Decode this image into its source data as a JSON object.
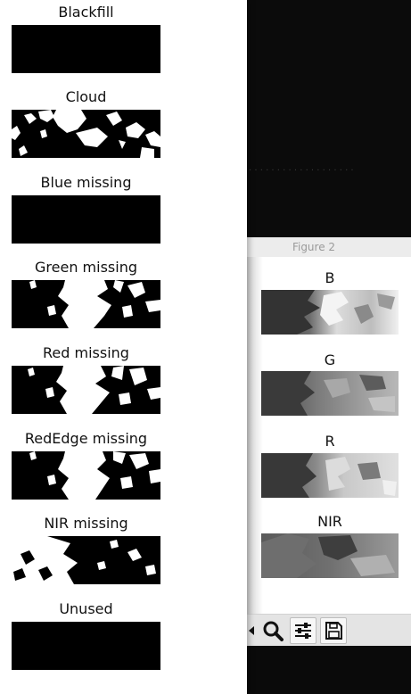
{
  "mask_panel": {
    "panels": [
      {
        "title": "Blackfill",
        "fill": "empty"
      },
      {
        "title": "Cloud",
        "fill": "cloud"
      },
      {
        "title": "Blue missing",
        "fill": "empty"
      },
      {
        "title": "Green missing",
        "fill": "veg"
      },
      {
        "title": "Red missing",
        "fill": "veg"
      },
      {
        "title": "RedEdge missing",
        "fill": "veg"
      },
      {
        "title": "NIR missing",
        "fill": "nir"
      },
      {
        "title": "Unused",
        "fill": "empty"
      }
    ]
  },
  "figure2": {
    "window_title": "Figure 2",
    "bands": [
      {
        "label": "B"
      },
      {
        "label": "G"
      },
      {
        "label": "R"
      },
      {
        "label": "NIR"
      }
    ],
    "toolbar": {
      "icons": [
        "arrow-icon",
        "zoom-icon",
        "configure-subplots-icon",
        "save-icon"
      ]
    }
  },
  "colors": {
    "background": "#0a0a0a",
    "panel_bg": "#ffffff",
    "mask_black": "#000000",
    "mask_white": "#ffffff",
    "titlebar": "#ececec",
    "toolbar": "#e4e4e4"
  }
}
